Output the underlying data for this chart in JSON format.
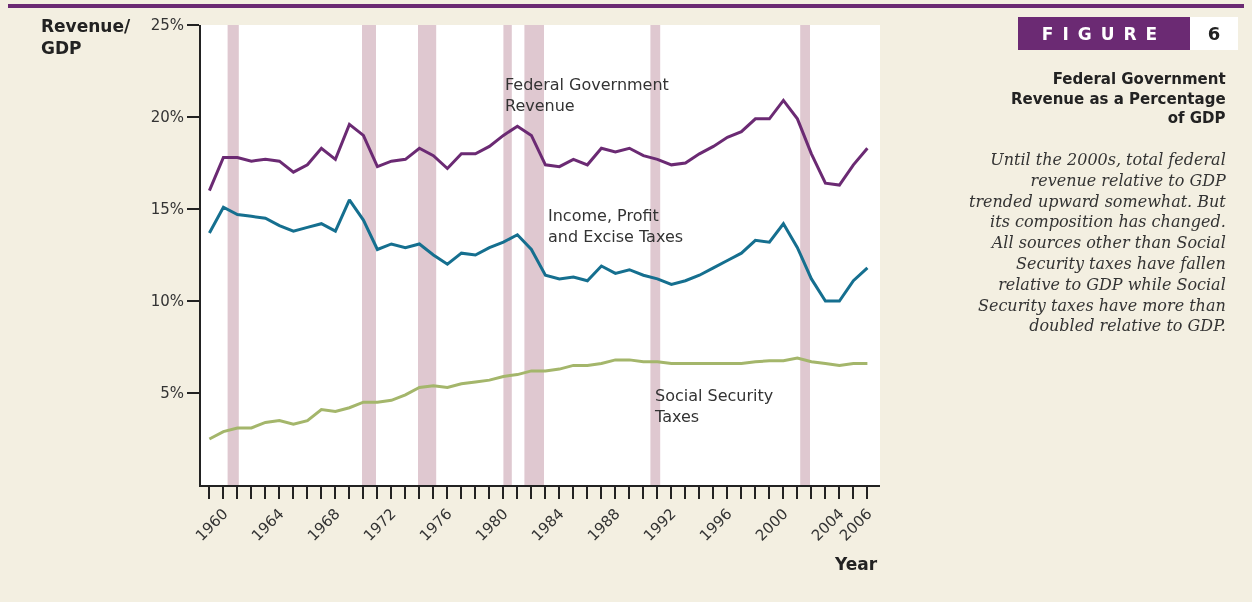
{
  "chart_data": {
    "type": "line",
    "title": "Federal Government Revenue as a Percentage of GDP",
    "subtitle": "Until the 2000s, total federal revenue relative to GDP trended upward somewhat. But its composition has changed. All sources other than Social Security taxes have fallen relative to GDP while Social Security taxes have more than doubled relative to GDP.",
    "xlabel": "Year",
    "ylabel": "Revenue/ GDP",
    "annotations": [
      "FIGURE",
      "6"
    ],
    "x": [
      1959,
      1960,
      1961,
      1962,
      1963,
      1964,
      1965,
      1966,
      1967,
      1968,
      1969,
      1970,
      1971,
      1972,
      1973,
      1974,
      1975,
      1976,
      1977,
      1978,
      1979,
      1980,
      1981,
      1982,
      1983,
      1984,
      1985,
      1986,
      1987,
      1988,
      1989,
      1990,
      1991,
      1992,
      1993,
      1994,
      1995,
      1996,
      1997,
      1998,
      1999,
      2000,
      2001,
      2002,
      2003,
      2004,
      2005,
      2006
    ],
    "series": [
      {
        "name": "Federal Government Revenue",
        "color": "#6b2a73",
        "values": [
          16.0,
          17.8,
          17.8,
          17.6,
          17.7,
          17.6,
          17.0,
          17.4,
          18.3,
          17.7,
          19.6,
          19.0,
          17.3,
          17.6,
          17.7,
          18.3,
          17.9,
          17.2,
          18.0,
          18.0,
          18.4,
          19.0,
          19.5,
          19.0,
          17.4,
          17.3,
          17.7,
          17.4,
          18.3,
          18.1,
          18.3,
          17.9,
          17.7,
          17.4,
          17.5,
          18.0,
          18.4,
          18.9,
          19.2,
          19.9,
          19.9,
          20.9,
          19.9,
          18.0,
          16.4,
          16.3,
          17.4,
          18.3
        ]
      },
      {
        "name": "Income, Profit and Excise Taxes",
        "color": "#156f8f",
        "values": [
          13.7,
          15.1,
          14.7,
          14.6,
          14.5,
          14.1,
          13.8,
          14.0,
          14.2,
          13.8,
          15.5,
          14.4,
          12.8,
          13.1,
          12.9,
          13.1,
          12.5,
          12.0,
          12.6,
          12.5,
          12.9,
          13.2,
          13.6,
          12.8,
          11.4,
          11.2,
          11.3,
          11.1,
          11.9,
          11.5,
          11.7,
          11.4,
          11.2,
          10.9,
          11.1,
          11.4,
          11.8,
          12.2,
          12.6,
          13.3,
          13.2,
          14.2,
          12.9,
          11.2,
          10.0,
          10.0,
          11.1,
          11.8
        ]
      },
      {
        "name": "Social Security Taxes",
        "color": "#a4b66b",
        "values": [
          2.5,
          2.9,
          3.1,
          3.1,
          3.4,
          3.5,
          3.3,
          3.5,
          4.1,
          4.0,
          4.2,
          4.5,
          4.5,
          4.6,
          4.9,
          5.3,
          5.4,
          5.3,
          5.5,
          5.6,
          5.7,
          5.9,
          6.0,
          6.2,
          6.2,
          6.3,
          6.5,
          6.5,
          6.6,
          6.8,
          6.8,
          6.7,
          6.7,
          6.6,
          6.6,
          6.6,
          6.6,
          6.6,
          6.6,
          6.7,
          6.75,
          6.75,
          6.9,
          6.7,
          6.6,
          6.5,
          6.6,
          6.6
        ]
      }
    ],
    "xlim": [
      1958.4,
      2006.9
    ],
    "xticks": [
      {
        "value": 1959,
        "label": null
      },
      1960,
      {
        "value": 1961,
        "label": null
      },
      {
        "value": 1962,
        "label": null
      },
      {
        "value": 1963,
        "label": null
      },
      1964,
      {
        "value": 1965,
        "label": null
      },
      {
        "value": 1966,
        "label": null
      },
      {
        "value": 1967,
        "label": null
      },
      1968,
      {
        "value": 1969,
        "label": null
      },
      {
        "value": 1970,
        "label": null
      },
      {
        "value": 1971,
        "label": null
      },
      1972,
      {
        "value": 1973,
        "label": null
      },
      {
        "value": 1974,
        "label": null
      },
      {
        "value": 1975,
        "label": null
      },
      1976,
      {
        "value": 1977,
        "label": null
      },
      {
        "value": 1978,
        "label": null
      },
      {
        "value": 1979,
        "label": null
      },
      1980,
      {
        "value": 1981,
        "label": null
      },
      {
        "value": 1982,
        "label": null
      },
      {
        "value": 1983,
        "label": null
      },
      1984,
      {
        "value": 1985,
        "label": null
      },
      {
        "value": 1986,
        "label": null
      },
      {
        "value": 1987,
        "label": null
      },
      1988,
      {
        "value": 1989,
        "label": null
      },
      {
        "value": 1990,
        "label": null
      },
      {
        "value": 1991,
        "label": null
      },
      1992,
      {
        "value": 1993,
        "label": null
      },
      {
        "value": 1994,
        "label": null
      },
      {
        "value": 1995,
        "label": null
      },
      1996,
      {
        "value": 1997,
        "label": null
      },
      {
        "value": 1998,
        "label": null
      },
      {
        "value": 1999,
        "label": null
      },
      2000,
      {
        "value": 2001,
        "label": null
      },
      {
        "value": 2002,
        "label": null
      },
      {
        "value": 2003,
        "label": null
      },
      2004,
      {
        "value": 2005,
        "label": null
      },
      2006
    ],
    "ylim": [
      0,
      25
    ],
    "yticks": [
      {
        "value": 5,
        "label": "5%"
      },
      {
        "value": 10,
        "label": "10%"
      },
      {
        "value": 15,
        "label": "15%"
      },
      {
        "value": 20,
        "label": "20%"
      },
      {
        "value": 25,
        "label": "25%"
      }
    ],
    "bands": [
      {
        "axis": "x",
        "from": 1960.3,
        "to": 1961.1,
        "color": "#dfc8d0"
      },
      {
        "axis": "x",
        "from": 1969.9,
        "to": 1970.9,
        "color": "#dfc8d0"
      },
      {
        "axis": "x",
        "from": 1973.9,
        "to": 1975.2,
        "color": "#dfc8d0"
      },
      {
        "axis": "x",
        "from": 1980.0,
        "to": 1980.6,
        "color": "#dfc8d0"
      },
      {
        "axis": "x",
        "from": 1981.5,
        "to": 1982.9,
        "color": "#dfc8d0"
      },
      {
        "axis": "x",
        "from": 1990.5,
        "to": 1991.2,
        "color": "#dfc8d0"
      },
      {
        "axis": "x",
        "from": 2001.2,
        "to": 2001.9,
        "color": "#dfc8d0"
      }
    ],
    "grid": false,
    "legend": false,
    "marker": "none",
    "line_style": "solid"
  }
}
